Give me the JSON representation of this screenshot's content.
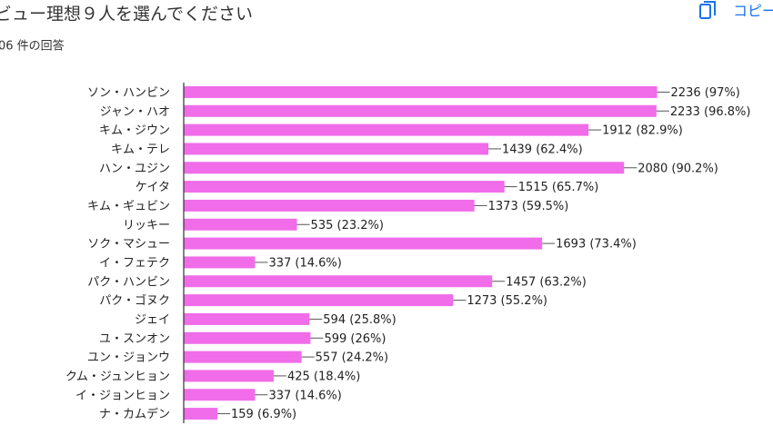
{
  "copy_label": "コピー",
  "chart_data": {
    "type": "bar",
    "orientation": "horizontal",
    "title": "ビュー理想９人を選んでください",
    "subtitle": "06 件の回答",
    "categories": [
      "ソン・ハンビン",
      "ジャン・ハオ",
      "キム・ジウン",
      "キム・テレ",
      "ハン・ユジン",
      "ケイタ",
      "キム・ギュビン",
      "リッキー",
      "ソク・マシュー",
      "イ・フェテク",
      "パク・ハンビン",
      "パク・ゴヌク",
      "ジェイ",
      "ユ・スンオン",
      "ユン・ジョンウ",
      "クム・ジュンヒョン",
      "イ・ジョンヒョン",
      "ナ・カムデン"
    ],
    "values": [
      2236,
      2233,
      1912,
      1439,
      2080,
      1515,
      1373,
      535,
      1693,
      337,
      1457,
      1273,
      594,
      599,
      557,
      425,
      337,
      159
    ],
    "value_labels": [
      "2236 (97%)",
      "2233 (96.8%)",
      "1912 (82.9%)",
      "1439 (62.4%)",
      "2080 (90.2%)",
      "1515 (65.7%)",
      "1373 (59.5%)",
      "535 (23.2%)",
      "1693 (73.4%)",
      "337 (14.6%)",
      "1457 (63.2%)",
      "1273 (55.2%)",
      "594 (25.8%)",
      "599 (26%)",
      "557 (24.2%)",
      "425 (18.4%)",
      "337 (14.6%)",
      "159 (6.9%)"
    ],
    "color": "#f06ce9",
    "xlim": [
      0,
      2500
    ]
  }
}
